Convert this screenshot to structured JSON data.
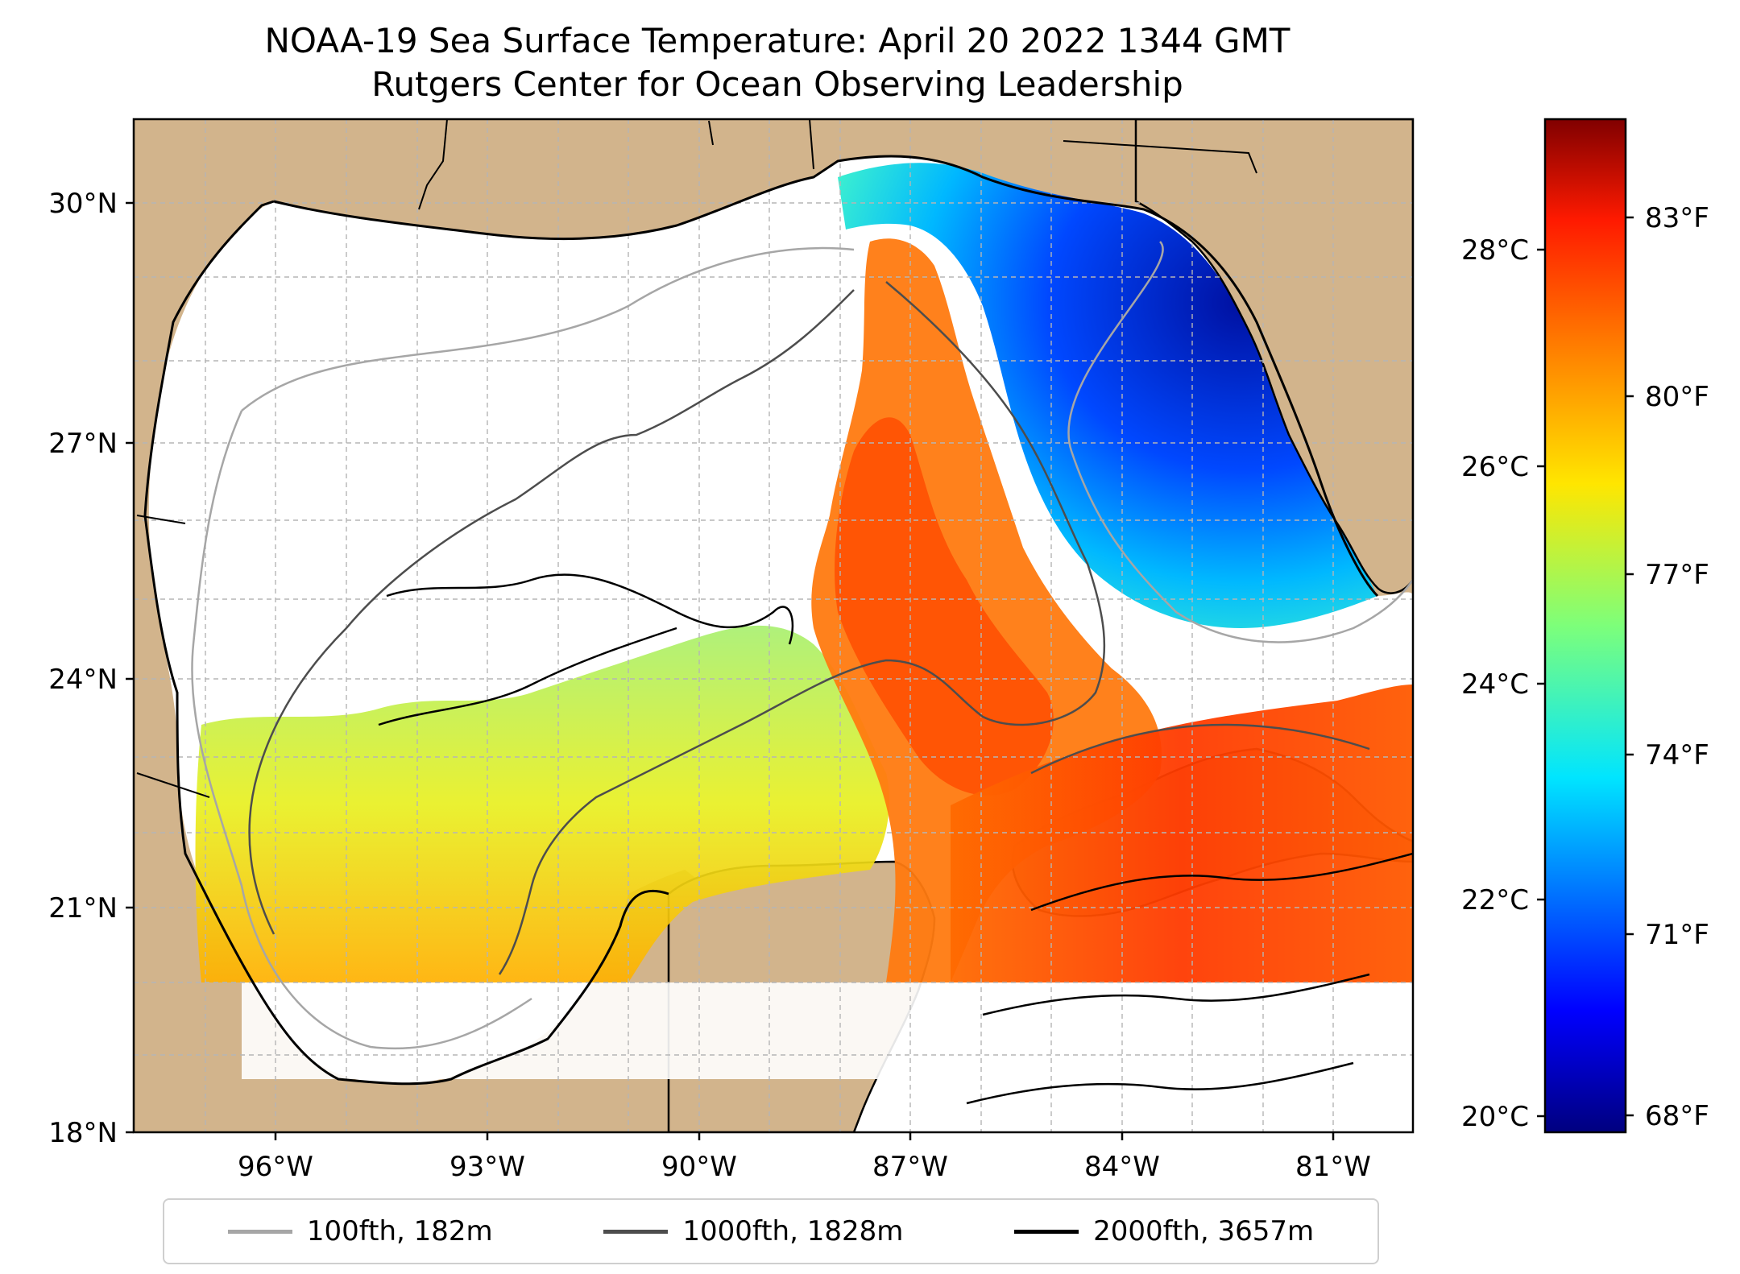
{
  "title": {
    "line1": "NOAA-19 Sea Surface Temperature: April 20 2022 1344 GMT",
    "line2": "Rutgers Center for Ocean Observing Leadership"
  },
  "map": {
    "lat_labels": [
      "30°N",
      "27°N",
      "24°N",
      "21°N",
      "18°N"
    ],
    "lon_labels": [
      "96°W",
      "93°W",
      "90°W",
      "87°W",
      "84°W",
      "81°W"
    ],
    "colors": {
      "land": "#d2b48c",
      "no_data": "#ffffff",
      "coast": "#000000",
      "water_body": "#9ab8e0"
    }
  },
  "colorbar": {
    "celsius_labels": [
      "28°C",
      "26°C",
      "24°C",
      "22°C",
      "20°C"
    ],
    "fahrenheit_labels": [
      "83°F",
      "80°F",
      "77°F",
      "74°F",
      "71°F",
      "68°F"
    ],
    "colormap": "jet",
    "range_celsius": [
      19.8,
      29.2
    ]
  },
  "legend": {
    "items": [
      {
        "label": "100fth, 182m",
        "color": "#a6a6a6"
      },
      {
        "label": "1000fth, 1828m",
        "color": "#4d4d4d"
      },
      {
        "label": "2000fth, 3657m",
        "color": "#000000"
      }
    ]
  }
}
